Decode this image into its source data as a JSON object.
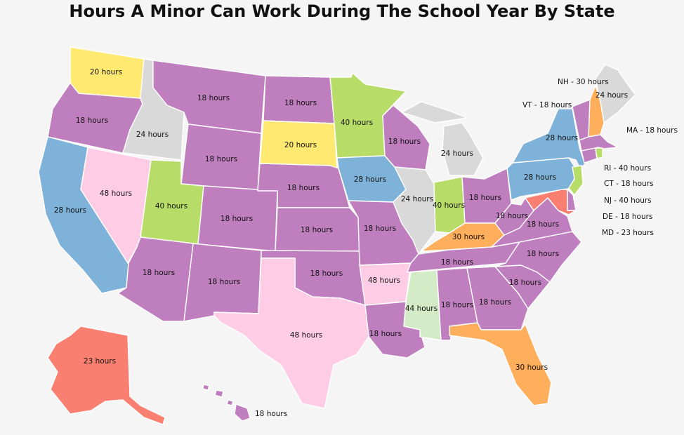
{
  "title": "Hours A Minor Can Work During The School Year By State",
  "colors": {
    "h18": "#bf7fbf",
    "h20": "#ffe970",
    "h23": "#f98070",
    "h24": "#d9d9d9",
    "h28": "#7eb2d8",
    "h30": "#ffae5c",
    "h40": "#b8dc68",
    "h44": "#d4ebc8",
    "h48": "#ffcce6"
  },
  "states": {
    "WA": {
      "hours": 20,
      "label": "20 hours"
    },
    "OR": {
      "hours": 18,
      "label": "18 hours"
    },
    "CA": {
      "hours": 28,
      "label": "28 hours"
    },
    "NV": {
      "hours": 48,
      "label": "48 hours"
    },
    "ID": {
      "hours": 24,
      "label": "24 hours"
    },
    "MT": {
      "hours": 18,
      "label": "18 hours"
    },
    "WY": {
      "hours": 18,
      "label": "18 hours"
    },
    "UT": {
      "hours": 40,
      "label": "40 hours"
    },
    "AZ": {
      "hours": 18,
      "label": "18 hours"
    },
    "CO": {
      "hours": 18,
      "label": "18 hours"
    },
    "NM": {
      "hours": 18,
      "label": "18 hours"
    },
    "ND": {
      "hours": 18,
      "label": "18 hours"
    },
    "SD": {
      "hours": 20,
      "label": "20 hours"
    },
    "NE": {
      "hours": 18,
      "label": "18 hours"
    },
    "KS": {
      "hours": 18,
      "label": "18 hours"
    },
    "OK": {
      "hours": 18,
      "label": "18 hours"
    },
    "TX": {
      "hours": 48,
      "label": "48 hours"
    },
    "MN": {
      "hours": 40,
      "label": "40 hours"
    },
    "IA": {
      "hours": 28,
      "label": "28 hours"
    },
    "MO": {
      "hours": 18,
      "label": "18 hours"
    },
    "AR": {
      "hours": 48,
      "label": "48 hours"
    },
    "LA": {
      "hours": 18,
      "label": "18 hours"
    },
    "WI": {
      "hours": 18,
      "label": "18 hours"
    },
    "IL": {
      "hours": 24,
      "label": "24 hours"
    },
    "MI": {
      "hours": 24,
      "label": "24 hours"
    },
    "IN": {
      "hours": 40,
      "label": "40 hours"
    },
    "OH": {
      "hours": 18,
      "label": "18 hours"
    },
    "KY": {
      "hours": 30,
      "label": "30 hours"
    },
    "TN": {
      "hours": 18,
      "label": "18 hours"
    },
    "MS": {
      "hours": 44,
      "label": "44 hours"
    },
    "AL": {
      "hours": 18,
      "label": "18 hours"
    },
    "GA": {
      "hours": 18,
      "label": "18 hours"
    },
    "FL": {
      "hours": 30,
      "label": "30 hours"
    },
    "SC": {
      "hours": 18,
      "label": "18 hours"
    },
    "NC": {
      "hours": 18,
      "label": "18 hours"
    },
    "VA": {
      "hours": 18,
      "label": "18 hours"
    },
    "WV": {
      "hours": 18,
      "label": "18 hours"
    },
    "PA": {
      "hours": 28,
      "label": "28 hours"
    },
    "NY": {
      "hours": 28,
      "label": "28 hours"
    },
    "ME": {
      "hours": 24,
      "label": "24 hours"
    },
    "AK": {
      "hours": 23,
      "label": "23 hours"
    },
    "HI": {
      "hours": 18,
      "label": "18 hours"
    },
    "NH": {
      "hours": 30,
      "label": "NH - 30 hours"
    },
    "VT": {
      "hours": 18,
      "label": "VT - 18 hours"
    },
    "MA": {
      "hours": 18,
      "label": "MA - 18 hours"
    },
    "RI": {
      "hours": 40,
      "label": "RI - 40 hours"
    },
    "CT": {
      "hours": 18,
      "label": "CT - 18 hours"
    },
    "NJ": {
      "hours": 40,
      "label": "NJ - 40 hours"
    },
    "DE": {
      "hours": 18,
      "label": "DE - 18 hours"
    },
    "MD": {
      "hours": 23,
      "label": "MD - 23 hours"
    }
  }
}
